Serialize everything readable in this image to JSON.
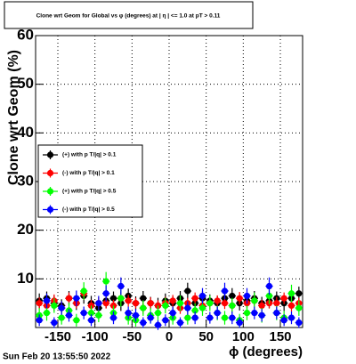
{
  "chart_data": {
    "type": "scatter",
    "title": "Clone wrt Geom for Global vs φ (degrees) at | η | <= 1.0 at pT > 0.11",
    "x_label": "ϕ (degrees)",
    "y_label": "Clone wrt Geom (%)",
    "timestamp": "Sun Feb 20 13:55:50 2022",
    "xlim": [
      -180,
      180
    ],
    "ylim": [
      0,
      60
    ],
    "xticks": [
      -150,
      -100,
      -50,
      0,
      50,
      100,
      150
    ],
    "yticks": [
      10,
      20,
      30,
      40,
      50,
      60
    ],
    "grid": true,
    "x": [
      -175,
      -165,
      -155,
      -145,
      -135,
      -125,
      -115,
      -105,
      -95,
      -85,
      -75,
      -65,
      -55,
      -45,
      -35,
      -25,
      -15,
      -5,
      5,
      15,
      25,
      35,
      45,
      55,
      65,
      75,
      85,
      95,
      105,
      115,
      125,
      135,
      145,
      155,
      165,
      175
    ],
    "series": [
      {
        "name": "(+) with p T/|q| > 0.1",
        "color": "#000000",
        "values": [
          5.5,
          6,
          5,
          4.5,
          6,
          5,
          6.5,
          5,
          4,
          5.5,
          6,
          5,
          6.5,
          5,
          6,
          5,
          4.5,
          5.5,
          5,
          6,
          7.5,
          5,
          6,
          5.5,
          5,
          6,
          6.5,
          5,
          5.5,
          6,
          5,
          5.5,
          6,
          5,
          6,
          7
        ],
        "errors": [
          1.5,
          1.4,
          1.6,
          1.3,
          1.5,
          1.4,
          1.6,
          1.5,
          1.3,
          1.5,
          1.4,
          1.6,
          1.5,
          1.4,
          1.5,
          1.3,
          1.6,
          1.5,
          1.4,
          1.5,
          1.7,
          1.4,
          1.5,
          1.3,
          1.5,
          1.4,
          1.6,
          1.5,
          1.4,
          1.5,
          1.3,
          1.5,
          1.4,
          1.6,
          1.5,
          1.4
        ]
      },
      {
        "name": "(-) with p T/|q| > 0.1",
        "color": "#ff0000",
        "values": [
          5,
          4.5,
          5.5,
          4,
          6,
          5,
          7,
          4.5,
          5,
          5,
          4.5,
          6,
          5.5,
          5,
          4,
          5,
          4.5,
          5,
          5.5,
          4,
          5,
          6,
          4.5,
          5,
          5.5,
          5,
          4.5,
          6,
          5,
          5.5,
          4.5,
          5,
          5,
          6,
          4.5,
          5
        ],
        "errors": [
          1.2,
          1.1,
          1.3,
          1.2,
          1.2,
          1.1,
          1.3,
          1.2,
          1.2,
          1.1,
          1.2,
          1.3,
          1.2,
          1.1,
          1.2,
          1.2,
          1.1,
          1.3,
          1.2,
          1.2,
          1.1,
          1.2,
          1.3,
          1.2,
          1.1,
          1.2,
          1.2,
          1.3,
          1.1,
          1.2,
          1.2,
          1.1,
          1.3,
          1.2,
          1.2,
          1.1
        ]
      },
      {
        "name": "(+) with p T/|q| > 0.5",
        "color": "#00ff00",
        "values": [
          2.5,
          3,
          4.5,
          2,
          3.5,
          1.5,
          7.5,
          3,
          2.5,
          9.5,
          3,
          6,
          2,
          1.5,
          4,
          2.5,
          3,
          4.5,
          2,
          5,
          2,
          3.5,
          4,
          5,
          3,
          2,
          4.5,
          1.5,
          3,
          5.5,
          2.5,
          6.5,
          3,
          2,
          7,
          4
        ],
        "errors": [
          1.5,
          1.6,
          1.5,
          1.4,
          1.6,
          1.3,
          1.8,
          1.5,
          1.4,
          1.9,
          1.5,
          1.7,
          1.4,
          1.3,
          1.6,
          1.5,
          1.5,
          1.6,
          1.4,
          1.6,
          1.4,
          1.5,
          1.6,
          1.6,
          1.5,
          1.4,
          1.6,
          1.3,
          1.5,
          1.7,
          1.5,
          1.7,
          1.5,
          1.4,
          1.8,
          1.6
        ]
      },
      {
        "name": "(-) with p T/|q| > 0.5",
        "color": "#0000ff",
        "values": [
          1.5,
          5.5,
          1,
          4,
          2.5,
          6,
          3,
          1.5,
          5,
          7,
          2,
          8.5,
          3,
          2.5,
          1,
          2,
          0.5,
          1.5,
          3,
          1,
          4,
          2,
          6.5,
          2,
          3,
          7.5,
          2,
          1,
          6.5,
          3,
          2.5,
          8.5,
          3,
          1.5,
          2,
          1
        ],
        "errors": [
          1.2,
          1.5,
          1.1,
          1.4,
          1.3,
          1.6,
          1.3,
          1.2,
          1.5,
          1.7,
          1.3,
          1.8,
          1.3,
          1.3,
          1.1,
          1.2,
          1,
          1.2,
          1.3,
          1.1,
          1.4,
          1.3,
          1.6,
          1.2,
          1.3,
          1.7,
          1.3,
          1.1,
          1.6,
          1.3,
          1.3,
          1.8,
          1.3,
          1.2,
          1.3,
          1.1
        ]
      }
    ]
  }
}
